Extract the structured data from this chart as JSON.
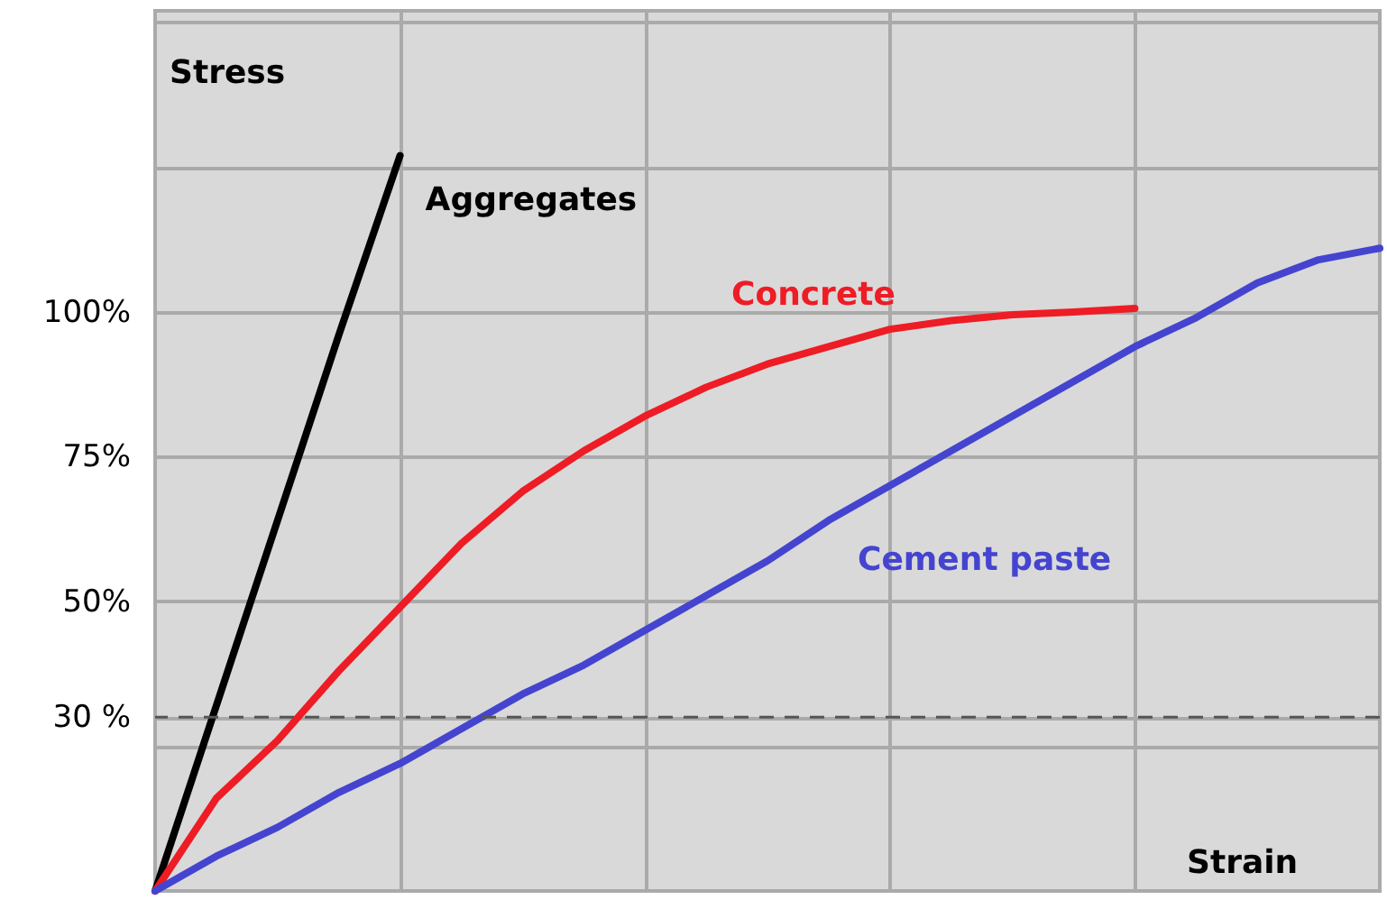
{
  "chart_data": {
    "type": "line",
    "xlabel": "Strain",
    "ylabel": "Stress",
    "categories": [
      null,
      null,
      null,
      null,
      null,
      null,
      null,
      null,
      null,
      null,
      null,
      null,
      null,
      null,
      null,
      null,
      null,
      null,
      null,
      null,
      null
    ],
    "ylim": [
      0,
      152
    ],
    "yticks": [
      {
        "value": 25,
        "label": null
      },
      {
        "value": 30,
        "label": "30 %"
      },
      {
        "value": 50,
        "label": "50%"
      },
      {
        "value": 75,
        "label": "75%"
      },
      {
        "value": 100,
        "label": "100%"
      },
      {
        "value": 125,
        "label": null
      },
      {
        "value": 150,
        "label": null
      }
    ],
    "grid": true,
    "marker": "none",
    "line_style": "solid",
    "series": [
      {
        "name": "Aggregates",
        "color": "#000000",
        "values": [
          0,
          32,
          64,
          96,
          127,
          null,
          null,
          null,
          null,
          null,
          null,
          null,
          null,
          null,
          null,
          null,
          null,
          null,
          null,
          null,
          null
        ]
      },
      {
        "name": "Concrete",
        "color": "#ee1c25",
        "values": [
          0,
          16,
          26,
          38,
          49,
          60,
          69,
          76,
          82,
          87,
          91,
          94,
          97,
          98.5,
          99.5,
          100,
          100.6,
          null,
          null,
          null,
          null
        ]
      },
      {
        "name": "Cement paste",
        "color": "#4444d0",
        "values": [
          0,
          6,
          11,
          17,
          22,
          28,
          34,
          39,
          45,
          51,
          57,
          64,
          70,
          76,
          82,
          88,
          94,
          99,
          105,
          109,
          111
        ]
      }
    ],
    "ref_lines": [
      {
        "axis": "y",
        "value": 30,
        "color": "#555555",
        "line_style": "dashed"
      }
    ]
  }
}
